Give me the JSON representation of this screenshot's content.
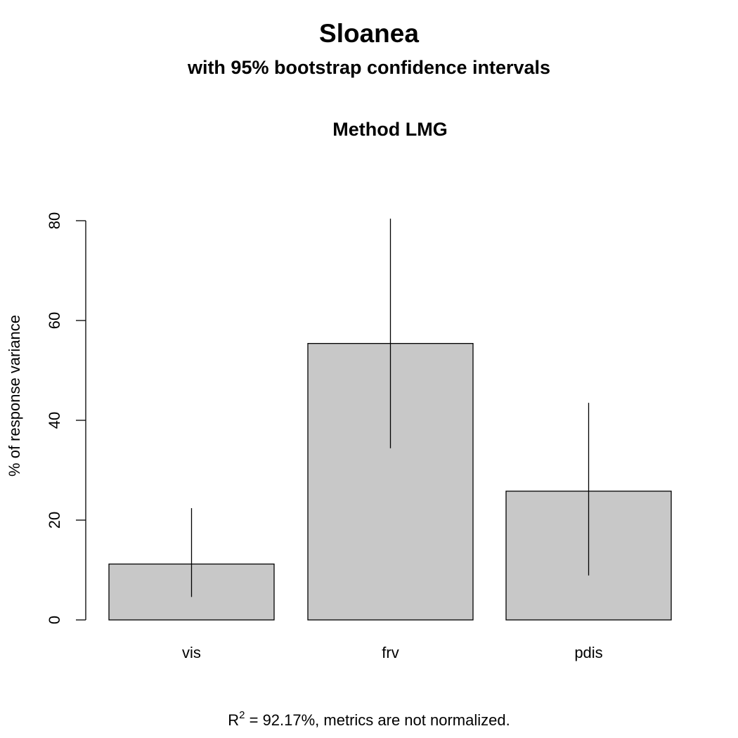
{
  "chart_data": {
    "type": "bar",
    "title": "Sloanea",
    "subtitle": "with 95% bootstrap confidence intervals",
    "panel_title": "Method LMG",
    "xlabel": "",
    "ylabel": "% of response variance",
    "categories": [
      "vis",
      "frv",
      "pdis"
    ],
    "values": [
      11.2,
      55.4,
      25.8
    ],
    "ci_lower": [
      4.6,
      34.4,
      8.9
    ],
    "ci_upper": [
      22.4,
      80.4,
      43.5
    ],
    "ylim": [
      0,
      80
    ],
    "yticks": [
      0,
      20,
      40,
      60,
      80
    ],
    "ytick_labels": [
      "0",
      "20",
      "40",
      "60",
      "80"
    ],
    "grid": false,
    "bar_color": "#c8c8c8",
    "bar_edge_color": "#000000",
    "footer": {
      "r_symbol": "R",
      "superscript": "2",
      "eq": " = ",
      "text": "92.17%, metrics are not normalized."
    }
  }
}
